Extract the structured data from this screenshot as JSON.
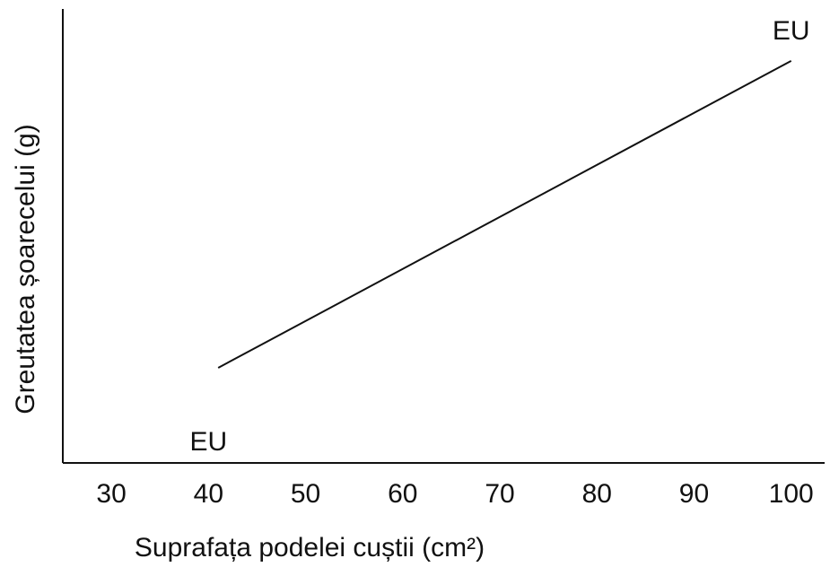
{
  "chart_data": {
    "type": "line",
    "title": "",
    "xlabel": "Suprafața podelei cuștii (cm²)",
    "ylabel": "Greutatea șoarecelui (g)",
    "xlim": [
      25,
      104
    ],
    "x_ticks": [
      30,
      40,
      50,
      60,
      70,
      80,
      90,
      100
    ],
    "y_ticks": [],
    "grid": false,
    "legend": "none",
    "series": [
      {
        "points": [
          {
            "x": 41,
            "y": 0.22
          },
          {
            "x": 100,
            "y": 0.93
          }
        ]
      }
    ],
    "annotations": [
      {
        "text": "EU",
        "x": 40,
        "y": 0.05
      },
      {
        "text": "EU",
        "x": 100,
        "y": 1.0
      }
    ],
    "ylim": [
      0,
      1.05
    ],
    "colors": {
      "ink": "#111111",
      "background": "#ffffff"
    }
  }
}
